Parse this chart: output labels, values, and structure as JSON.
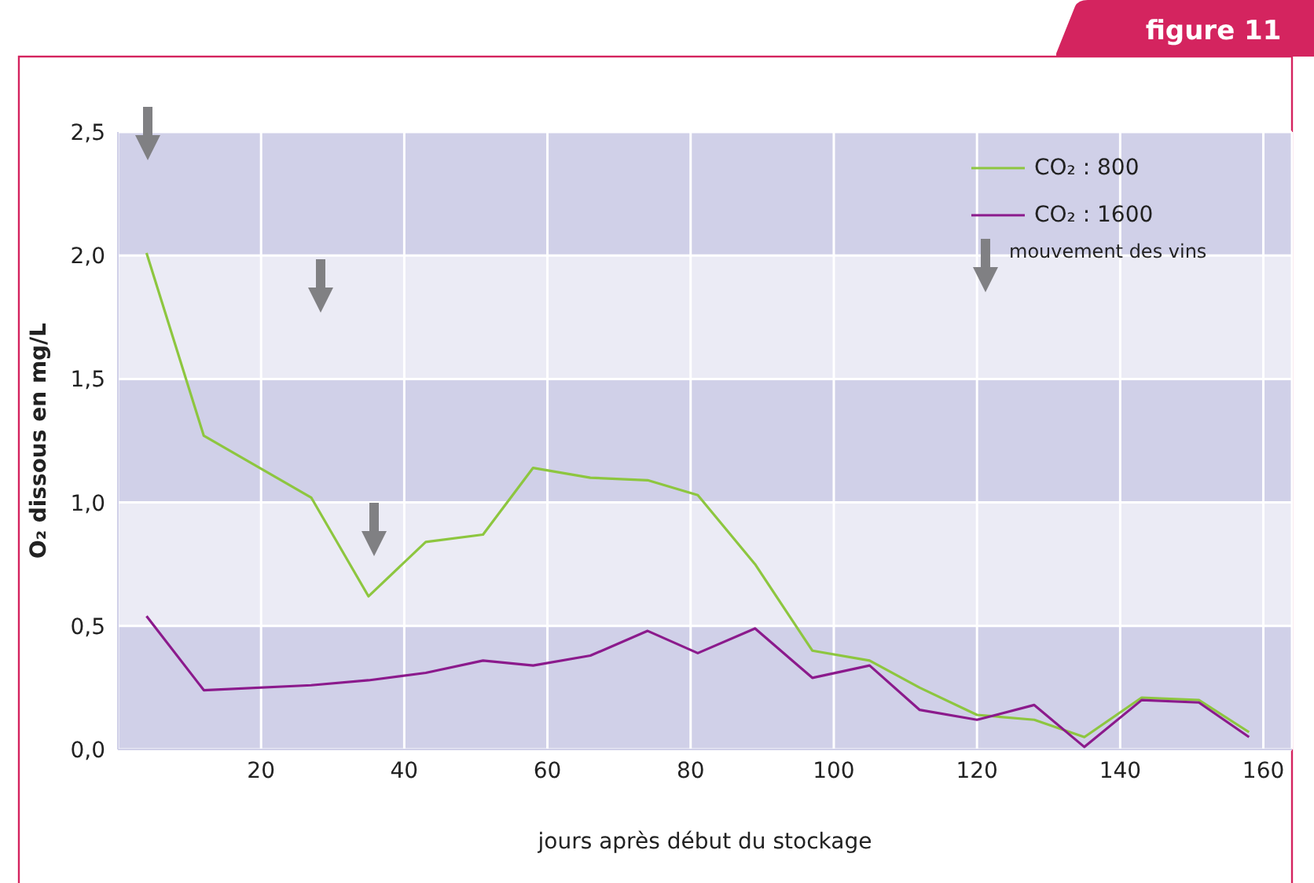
{
  "chart_data": {
    "type": "line",
    "title": "figure 11",
    "xlabel": "jours après début du stockage",
    "ylabel": "O₂ dissous en mg/L",
    "annotations": [
      "mouvement des vins"
    ],
    "series": [
      {
        "name": "CO₂ : 800",
        "color": "#8dc63f",
        "x": [
          4,
          12,
          27,
          35,
          43,
          51,
          58,
          66,
          74,
          81,
          89,
          97,
          105,
          112,
          120,
          128,
          135,
          143,
          151,
          158
        ],
        "values": [
          2.01,
          1.27,
          1.02,
          0.62,
          0.84,
          0.87,
          1.14,
          1.1,
          1.09,
          1.03,
          0.75,
          0.4,
          0.36,
          0.25,
          0.14,
          0.12,
          0.05,
          0.21,
          0.2,
          0.07
        ]
      },
      {
        "name": "CO₂ : 1600",
        "color": "#8b1a8c",
        "x": [
          4,
          12,
          27,
          35,
          43,
          51,
          58,
          66,
          74,
          81,
          89,
          97,
          105,
          112,
          120,
          128,
          135,
          143,
          151,
          158
        ],
        "values": [
          0.54,
          0.24,
          0.26,
          0.28,
          0.31,
          0.36,
          0.34,
          0.38,
          0.48,
          0.39,
          0.49,
          0.29,
          0.34,
          0.16,
          0.12,
          0.18,
          0.01,
          0.2,
          0.19,
          0.05
        ]
      }
    ],
    "xlim": [
      0,
      164
    ],
    "xticks": [
      20,
      40,
      60,
      80,
      100,
      120,
      140,
      160
    ],
    "ylim": [
      0,
      2.5
    ],
    "yticks": [
      {
        "value": 0,
        "label": "0,0"
      },
      {
        "value": 0.5,
        "label": "0,5"
      },
      {
        "value": 1,
        "label": "1,0"
      },
      {
        "value": 1.5,
        "label": "1,5"
      },
      {
        "value": 2,
        "label": "2,0"
      },
      {
        "value": 2.5,
        "label": "2,5"
      }
    ],
    "grid": true,
    "legend": "top right",
    "marker": "none",
    "line_style": "solid"
  }
}
